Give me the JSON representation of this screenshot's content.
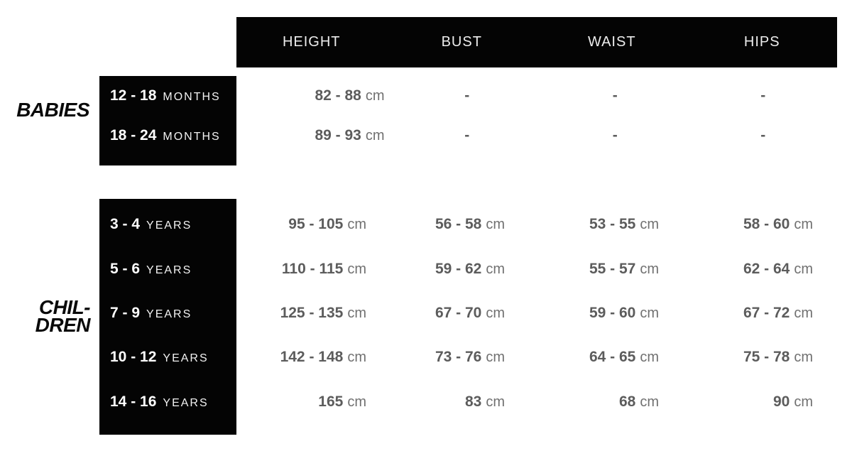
{
  "chart_data": {
    "type": "table",
    "columns": [
      "HEIGHT",
      "BUST",
      "WAIST",
      "HIPS"
    ],
    "row_groups": [
      {
        "label_lines": [
          "BABIES"
        ],
        "rows": [
          {
            "age": {
              "num": "12 - 18",
              "unit": "MONTHS"
            },
            "height": {
              "num": "82 - 88",
              "unit": "cm"
            },
            "bust": {
              "num": "-",
              "unit": ""
            },
            "waist": {
              "num": "-",
              "unit": ""
            },
            "hips": {
              "num": "-",
              "unit": ""
            }
          },
          {
            "age": {
              "num": "18 - 24",
              "unit": "MONTHS"
            },
            "height": {
              "num": "89 - 93",
              "unit": "cm"
            },
            "bust": {
              "num": "-",
              "unit": ""
            },
            "waist": {
              "num": "-",
              "unit": ""
            },
            "hips": {
              "num": "-",
              "unit": ""
            }
          }
        ]
      },
      {
        "label_lines": [
          "CHIL-",
          "DREN"
        ],
        "rows": [
          {
            "age": {
              "num": "3 - 4",
              "unit": "YEARS"
            },
            "height": {
              "num": "95 - 105",
              "unit": "cm"
            },
            "bust": {
              "num": "56 - 58",
              "unit": "cm"
            },
            "waist": {
              "num": "53 - 55",
              "unit": "cm"
            },
            "hips": {
              "num": "58 - 60",
              "unit": "cm"
            }
          },
          {
            "age": {
              "num": "5 - 6",
              "unit": "YEARS"
            },
            "height": {
              "num": "110 - 115",
              "unit": "cm"
            },
            "bust": {
              "num": "59 - 62",
              "unit": "cm"
            },
            "waist": {
              "num": "55 - 57",
              "unit": "cm"
            },
            "hips": {
              "num": "62 - 64",
              "unit": "cm"
            }
          },
          {
            "age": {
              "num": "7 - 9",
              "unit": "YEARS"
            },
            "height": {
              "num": "125 - 135",
              "unit": "cm"
            },
            "bust": {
              "num": "67 - 70",
              "unit": "cm"
            },
            "waist": {
              "num": "59 - 60",
              "unit": "cm"
            },
            "hips": {
              "num": "67 - 72",
              "unit": "cm"
            }
          },
          {
            "age": {
              "num": "10 - 12",
              "unit": "YEARS"
            },
            "height": {
              "num": "142 - 148",
              "unit": "cm"
            },
            "bust": {
              "num": "73 - 76",
              "unit": "cm"
            },
            "waist": {
              "num": "64 - 65",
              "unit": "cm"
            },
            "hips": {
              "num": "75 - 78",
              "unit": "cm"
            }
          },
          {
            "age": {
              "num": "14 - 16",
              "unit": "YEARS"
            },
            "height": {
              "num": "165",
              "unit": "cm"
            },
            "bust": {
              "num": "83",
              "unit": "cm"
            },
            "waist": {
              "num": "68",
              "unit": "cm"
            },
            "hips": {
              "num": "90",
              "unit": "cm"
            }
          }
        ]
      }
    ],
    "colors": {
      "header_bg": "#040404",
      "header_text": "#ededed",
      "label_box_bg": "#040404",
      "label_text": "#ffffff",
      "value_number": "#5c5c5c",
      "value_unit": "#707070",
      "section_label": "#0a0a0a",
      "background": "#ffffff"
    },
    "layout": {
      "grid": "off",
      "legend": "none"
    }
  }
}
